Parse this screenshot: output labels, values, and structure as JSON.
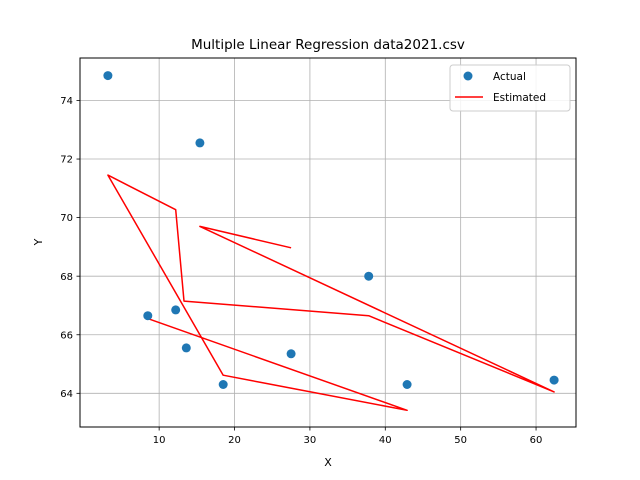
{
  "chart_data": {
    "type": "scatter",
    "title": "Multiple Linear Regression data2021.csv",
    "xlabel": "X",
    "ylabel": "Y",
    "xlim": [
      -0.5,
      65.3
    ],
    "ylim": [
      62.85,
      75.45
    ],
    "xticks": [
      10,
      20,
      30,
      40,
      50,
      60
    ],
    "yticks": [
      64,
      66,
      68,
      70,
      72,
      74
    ],
    "grid": true,
    "legend_position": "top-right",
    "series": [
      {
        "name": "Actual",
        "kind": "scatter",
        "color": "#1f77b4",
        "points": [
          {
            "x": 3.2,
            "y": 74.85
          },
          {
            "x": 15.4,
            "y": 72.55
          },
          {
            "x": 37.8,
            "y": 68.0
          },
          {
            "x": 8.5,
            "y": 66.65
          },
          {
            "x": 12.2,
            "y": 66.85
          },
          {
            "x": 13.6,
            "y": 65.55
          },
          {
            "x": 27.5,
            "y": 65.35
          },
          {
            "x": 18.5,
            "y": 64.3
          },
          {
            "x": 42.9,
            "y": 64.3
          },
          {
            "x": 62.4,
            "y": 64.45
          }
        ]
      },
      {
        "name": "Estimated",
        "kind": "line",
        "color": "#ff0000",
        "points": [
          {
            "x": 27.5,
            "y": 68.97
          },
          {
            "x": 15.4,
            "y": 69.7
          },
          {
            "x": 62.4,
            "y": 64.05
          },
          {
            "x": 37.8,
            "y": 66.65
          },
          {
            "x": 13.3,
            "y": 67.15
          },
          {
            "x": 12.2,
            "y": 70.27
          },
          {
            "x": 3.2,
            "y": 71.45
          },
          {
            "x": 18.5,
            "y": 64.62
          },
          {
            "x": 42.9,
            "y": 63.42
          },
          {
            "x": 8.5,
            "y": 66.55
          }
        ]
      }
    ]
  }
}
